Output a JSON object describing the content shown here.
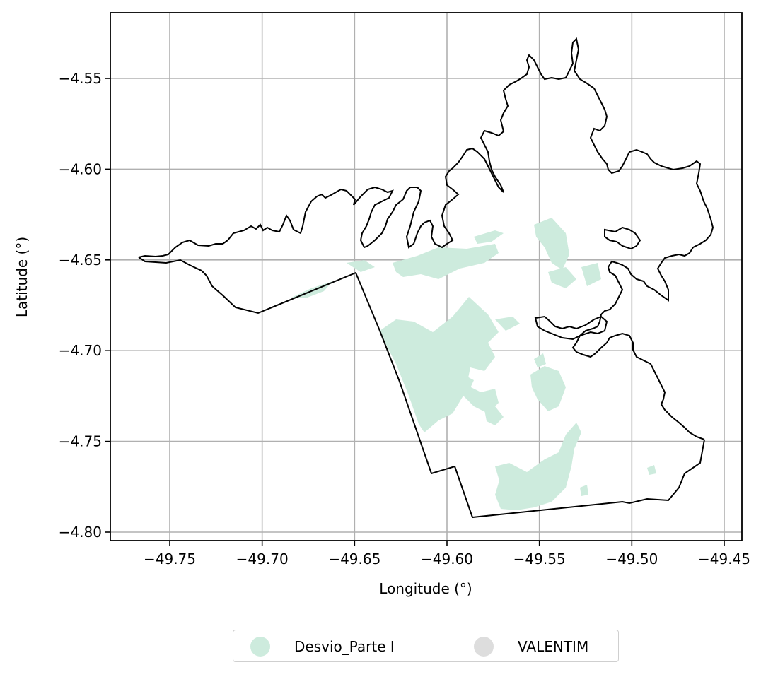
{
  "chart_data": {
    "type": "map",
    "xlabel": "Longitude (°)",
    "ylabel": "Latitude (°)",
    "xlim": [
      -49.785,
      -49.435
    ],
    "ylim": [
      -4.805,
      -4.515
    ],
    "x_ticks": [
      -49.75,
      -49.7,
      -49.65,
      -49.6,
      -49.55,
      -49.5,
      -49.45
    ],
    "y_ticks": [
      -4.55,
      -4.6,
      -4.65,
      -4.7,
      -4.75,
      -4.8
    ],
    "x_tick_labels": [
      "−49.75",
      "−49.70",
      "−49.65",
      "−49.60",
      "−49.55",
      "−49.50",
      "−49.45"
    ],
    "y_tick_labels": [
      "−4.55",
      "−4.60",
      "−4.65",
      "−4.70",
      "−4.75",
      "−4.80"
    ],
    "grid": true,
    "legend_position": "bottom-center-outside",
    "series": [
      {
        "name": "Desvio_Parte I",
        "color": "#cdebdd"
      },
      {
        "name": "VALENTIM",
        "color": "#dddddd"
      }
    ]
  },
  "legend": {
    "items": [
      {
        "label": "Desvio_Parte I",
        "color": "#cdebdd"
      },
      {
        "label": "VALENTIM",
        "color": "#dddddd"
      }
    ]
  }
}
